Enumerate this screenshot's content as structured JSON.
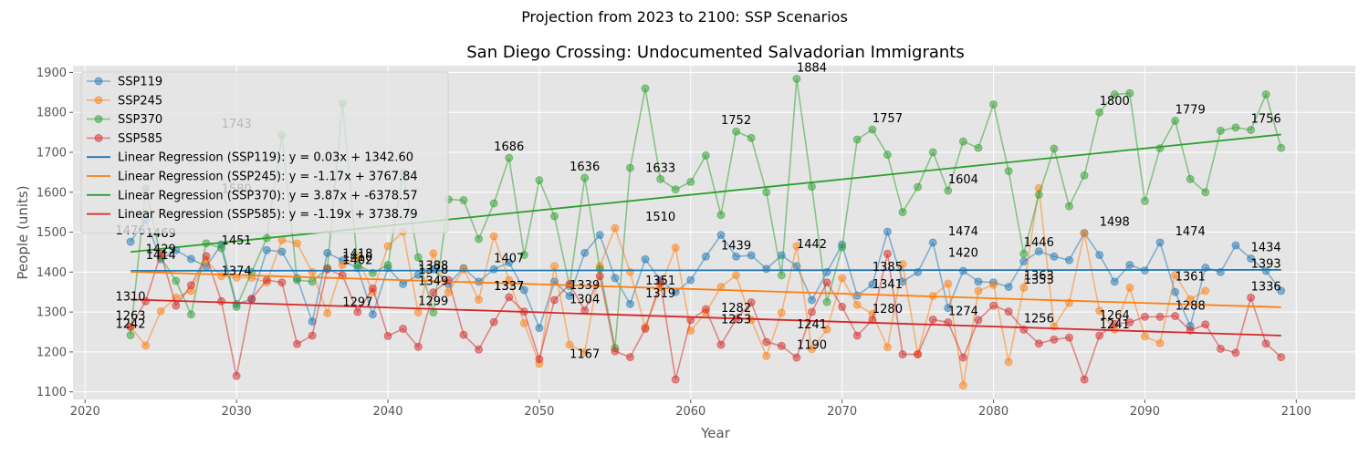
{
  "chart_data": {
    "type": "line",
    "suptitle": "Projection from 2023 to 2100: SSP Scenarios",
    "title": "San Diego Crossing: Undocumented Salvadorian Immigrants",
    "xlabel": "Year",
    "ylabel": "People (units)",
    "xlim": [
      2019.2,
      2103.9
    ],
    "ylim": [
      1081,
      1917
    ],
    "xticks": [
      2020,
      2030,
      2040,
      2050,
      2060,
      2070,
      2080,
      2090,
      2100
    ],
    "yticks": [
      1100,
      1200,
      1300,
      1400,
      1500,
      1600,
      1700,
      1800,
      1900
    ],
    "grid": true,
    "legend_position": "upper-left",
    "x_start": 2023,
    "series": [
      {
        "name": "SSP119",
        "color": "#1f77b4",
        "values": [
          1476,
          1530,
          1432,
          1455,
          1433,
          1414,
          1469,
          1320,
          1332,
          1455,
          1451,
          1385,
          1276,
          1448,
          1429,
          1410,
          1294,
          1410,
          1370,
          1393,
          1407,
          1370,
          1410,
          1376,
          1407,
          1424,
          1355,
          1260,
          1376,
          1340,
          1448,
          1493,
          1385,
          1320,
          1432,
          1380,
          1350,
          1380,
          1439,
          1493,
          1439,
          1442,
          1408,
          1442,
          1415,
          1330,
          1400,
          1469,
          1341,
          1369,
          1501,
          1376,
          1400,
          1474,
          1310,
          1403,
          1376,
          1374,
          1363,
          1427,
          1452,
          1439,
          1430,
          1498,
          1443,
          1376,
          1418,
          1404,
          1474,
          1350,
          1265,
          1411,
          1400,
          1467,
          1434,
          1403,
          1353
        ]
      },
      {
        "name": "SSP245",
        "color": "#ff7f0e",
        "values": [
          1263,
          1216,
          1302,
          1336,
          1353,
          1429,
          1390,
          1386,
          1386,
          1374,
          1480,
          1472,
          1400,
          1297,
          1418,
          1437,
          1350,
          1465,
          1501,
          1299,
          1447,
          1349,
          1407,
          1331,
          1490,
          1380,
          1272,
          1170,
          1415,
          1218,
          1199,
          1415,
          1510,
          1400,
          1263,
          1363,
          1461,
          1253,
          1299,
          1363,
          1392,
          1280,
          1190,
          1298,
          1465,
          1207,
          1256,
          1385,
          1318,
          1295,
          1212,
          1420,
          1195,
          1340,
          1371,
          1116,
          1353,
          1368,
          1175,
          1361,
          1610,
          1264,
          1323,
          1497,
          1303,
          1256,
          1361,
          1239,
          1222,
          1393,
          1332,
          1353
        ]
      },
      {
        "name": "SSP370",
        "color": "#2ca02c",
        "values": [
          1242,
          1609,
          1437,
          1378,
          1294,
          1472,
          1460,
          1313,
          1400,
          1485,
          1743,
          1380,
          1376,
          1410,
          1822,
          1418,
          1398,
          1418,
          1648,
          1437,
          1299,
          1582,
          1580,
          1483,
          1572,
          1686,
          1443,
          1630,
          1540,
          1365,
          1636,
          1408,
          1210,
          1661,
          1860,
          1633,
          1607,
          1626,
          1692,
          1543,
          1752,
          1736,
          1600,
          1392,
          1884,
          1614,
          1325,
          1462,
          1732,
          1757,
          1694,
          1550,
          1613,
          1700,
          1604,
          1727,
          1711,
          1820,
          1653,
          1446,
          1594,
          1709,
          1565,
          1642,
          1800,
          1845,
          1848,
          1578,
          1710,
          1779,
          1633,
          1600,
          1754,
          1762,
          1756,
          1845,
          1711
        ]
      },
      {
        "name": "SSP585",
        "color": "#d62728",
        "values": [
          1263,
          1327,
          1446,
          1316,
          1367,
          1440,
          1327,
          1140,
          1333,
          1380,
          1374,
          1220,
          1241,
          1407,
          1392,
          1300,
          1359,
          1240,
          1258,
          1213,
          1349,
          1380,
          1243,
          1206,
          1275,
          1337,
          1301,
          1182,
          1330,
          1370,
          1304,
          1390,
          1202,
          1187,
          1258,
          1374,
          1131,
          1280,
          1307,
          1218,
          1282,
          1324,
          1225,
          1215,
          1186,
          1300,
          1374,
          1313,
          1241,
          1280,
          1446,
          1194,
          1194,
          1281,
          1274,
          1186,
          1280,
          1316,
          1301,
          1256,
          1221,
          1231,
          1236,
          1131,
          1241,
          1270,
          1274,
          1288,
          1288,
          1290,
          1254,
          1269,
          1208,
          1198,
          1336,
          1221,
          1187
        ]
      }
    ],
    "regressions": [
      {
        "label": "Linear Regression (SSP119): y = 0.03x + 1342.60",
        "color": "#1f77b4",
        "slope": 0.03,
        "intercept": 1342.6
      },
      {
        "label": "Linear Regression (SSP245): y = -1.17x + 3767.84",
        "color": "#ff7f0e",
        "slope": -1.17,
        "intercept": 3767.84
      },
      {
        "label": "Linear Regression (SSP370): y = 3.87x + -6378.57",
        "color": "#2ca02c",
        "slope": 3.87,
        "intercept": -6378.57
      },
      {
        "label": "Linear Regression (SSP585): y = -1.19x + 3738.79",
        "color": "#d62728",
        "slope": -1.19,
        "intercept": 3738.79
      }
    ],
    "annotations": [
      {
        "text": "1476",
        "x": 2023,
        "y": 1476
      },
      {
        "text": "1310",
        "x": 2023,
        "y": 1310
      },
      {
        "text": "1263",
        "x": 2023,
        "y": 1263
      },
      {
        "text": "1242",
        "x": 2023,
        "y": 1242
      },
      {
        "text": "1469",
        "x": 2025,
        "y": 1469
      },
      {
        "text": "1469",
        "x": 2025,
        "y": 1469
      },
      {
        "text": "1429",
        "x": 2025,
        "y": 1429
      },
      {
        "text": "1414",
        "x": 2025,
        "y": 1414
      },
      {
        "text": "1743",
        "x": 2030,
        "y": 1743
      },
      {
        "text": "1580",
        "x": 2030,
        "y": 1580
      },
      {
        "text": "1451",
        "x": 2030,
        "y": 1451
      },
      {
        "text": "1374",
        "x": 2030,
        "y": 1374
      },
      {
        "text": "1418",
        "x": 2038,
        "y": 1418
      },
      {
        "text": "1410",
        "x": 2038,
        "y": 1410
      },
      {
        "text": "1402",
        "x": 2038,
        "y": 1402
      },
      {
        "text": "1297",
        "x": 2038,
        "y": 1297
      },
      {
        "text": "1388",
        "x": 2043,
        "y": 1388
      },
      {
        "text": "1378",
        "x": 2043,
        "y": 1378
      },
      {
        "text": "1349",
        "x": 2043,
        "y": 1349
      },
      {
        "text": "1299",
        "x": 2043,
        "y": 1299
      },
      {
        "text": "1686",
        "x": 2048,
        "y": 1686
      },
      {
        "text": "1407",
        "x": 2048,
        "y": 1407
      },
      {
        "text": "1337",
        "x": 2048,
        "y": 1337
      },
      {
        "text": "1337",
        "x": 2048,
        "y": 1337
      },
      {
        "text": "1636",
        "x": 2053,
        "y": 1636
      },
      {
        "text": "1339",
        "x": 2053,
        "y": 1339
      },
      {
        "text": "1304",
        "x": 2053,
        "y": 1304
      },
      {
        "text": "1167",
        "x": 2053,
        "y": 1167
      },
      {
        "text": "1633",
        "x": 2058,
        "y": 1633
      },
      {
        "text": "1510",
        "x": 2058,
        "y": 1510
      },
      {
        "text": "1351",
        "x": 2058,
        "y": 1351
      },
      {
        "text": "1319",
        "x": 2058,
        "y": 1319
      },
      {
        "text": "1752",
        "x": 2063,
        "y": 1752
      },
      {
        "text": "1439",
        "x": 2063,
        "y": 1439
      },
      {
        "text": "1282",
        "x": 2063,
        "y": 1282
      },
      {
        "text": "1253",
        "x": 2063,
        "y": 1253
      },
      {
        "text": "1884",
        "x": 2068,
        "y": 1884
      },
      {
        "text": "1442",
        "x": 2068,
        "y": 1442
      },
      {
        "text": "1241",
        "x": 2068,
        "y": 1241
      },
      {
        "text": "1190",
        "x": 2068,
        "y": 1190
      },
      {
        "text": "1757",
        "x": 2073,
        "y": 1757
      },
      {
        "text": "1385",
        "x": 2073,
        "y": 1385
      },
      {
        "text": "1341",
        "x": 2073,
        "y": 1341
      },
      {
        "text": "1280",
        "x": 2073,
        "y": 1280
      },
      {
        "text": "1604",
        "x": 2078,
        "y": 1604
      },
      {
        "text": "1474",
        "x": 2078,
        "y": 1474
      },
      {
        "text": "1420",
        "x": 2078,
        "y": 1420
      },
      {
        "text": "1274",
        "x": 2078,
        "y": 1274
      },
      {
        "text": "1446",
        "x": 2083,
        "y": 1446
      },
      {
        "text": "1363",
        "x": 2083,
        "y": 1363
      },
      {
        "text": "1353",
        "x": 2083,
        "y": 1353
      },
      {
        "text": "1256",
        "x": 2083,
        "y": 1256
      },
      {
        "text": "1800",
        "x": 2088,
        "y": 1800
      },
      {
        "text": "1498",
        "x": 2088,
        "y": 1498
      },
      {
        "text": "1264",
        "x": 2088,
        "y": 1264
      },
      {
        "text": "1241",
        "x": 2088,
        "y": 1241
      },
      {
        "text": "1779",
        "x": 2093,
        "y": 1779
      },
      {
        "text": "1474",
        "x": 2093,
        "y": 1474
      },
      {
        "text": "1361",
        "x": 2093,
        "y": 1361
      },
      {
        "text": "1288",
        "x": 2093,
        "y": 1288
      },
      {
        "text": "1756",
        "x": 2098,
        "y": 1756
      },
      {
        "text": "1434",
        "x": 2098,
        "y": 1434
      },
      {
        "text": "1393",
        "x": 2098,
        "y": 1393
      },
      {
        "text": "1336",
        "x": 2098,
        "y": 1336
      }
    ]
  }
}
